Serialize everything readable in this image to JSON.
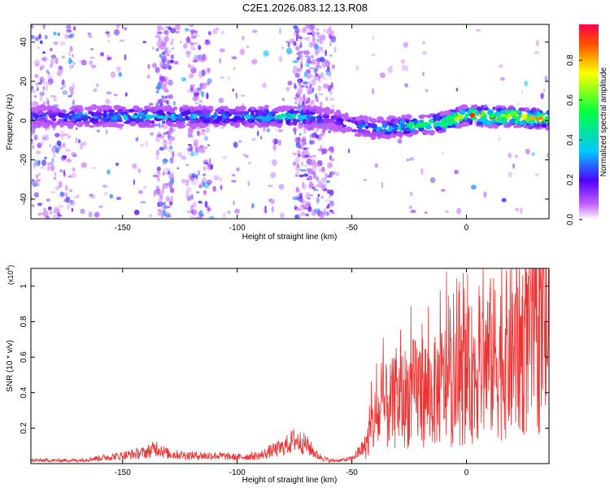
{
  "title": "C2E1.2026.083.12.13.R08",
  "chart_data": [
    {
      "type": "heatmap",
      "xlabel": "Height of straight line (km)",
      "ylabel": "Frequency (Hz)",
      "xlim": [
        -190,
        36
      ],
      "ylim": [
        -50,
        49
      ],
      "xticks": [
        -150,
        -100,
        -50,
        0
      ],
      "yticks": [
        -40,
        -20,
        0,
        20,
        40
      ],
      "colorbar": {
        "label": "Normalized spectral amplitude",
        "range": [
          0,
          0.98
        ],
        "ticks": [
          0.0,
          0.2,
          0.4,
          0.6,
          0.8
        ]
      },
      "ridge": {
        "x": [
          -180,
          -150,
          -120,
          -100,
          -80,
          -70,
          -60,
          -50,
          -40,
          -30,
          -20,
          -10,
          0,
          10,
          20,
          30,
          36
        ],
        "freq": [
          2,
          2,
          2,
          2,
          2,
          2,
          1,
          -2,
          -4,
          -3,
          -2,
          -1,
          3,
          2,
          2,
          1,
          1
        ],
        "amplitude": [
          0.3,
          0.4,
          0.35,
          0.35,
          0.45,
          0.4,
          0.2,
          0.3,
          0.35,
          0.45,
          0.55,
          0.65,
          0.8,
          0.9,
          0.85,
          0.8,
          0.7
        ]
      },
      "grid": false
    },
    {
      "type": "line",
      "xlabel": "Height of straight line (km)",
      "ylabel": "SNR (10 * v/v)",
      "y_multiplier": "(x10^4)",
      "xlim": [
        -190,
        36
      ],
      "ylim": [
        0,
        1.1
      ],
      "xticks": [
        -150,
        -100,
        -50,
        0
      ],
      "yticks": [
        0.2,
        0.4,
        0.6,
        0.8,
        1.0
      ],
      "series": [
        {
          "color": "#ee3333",
          "x": [
            -190,
            -170,
            -150,
            -140,
            -135,
            -130,
            -120,
            -110,
            -100,
            -90,
            -85,
            -80,
            -75,
            -70,
            -65,
            -60,
            -55,
            -50,
            -45,
            -42,
            -40,
            -35,
            -30,
            -25,
            -20,
            -15,
            -10,
            -5,
            0,
            5,
            10,
            15,
            20,
            25,
            30,
            36
          ],
          "y": [
            0.02,
            0.02,
            0.05,
            0.07,
            0.1,
            0.06,
            0.05,
            0.05,
            0.04,
            0.05,
            0.08,
            0.1,
            0.15,
            0.12,
            0.05,
            0.02,
            0.02,
            0.03,
            0.1,
            0.25,
            0.35,
            0.45,
            0.5,
            0.55,
            0.6,
            0.55,
            0.65,
            0.6,
            0.7,
            0.75,
            0.85,
            0.85,
            0.9,
            0.95,
            1.02,
            1.06
          ]
        }
      ],
      "grid": false
    }
  ]
}
